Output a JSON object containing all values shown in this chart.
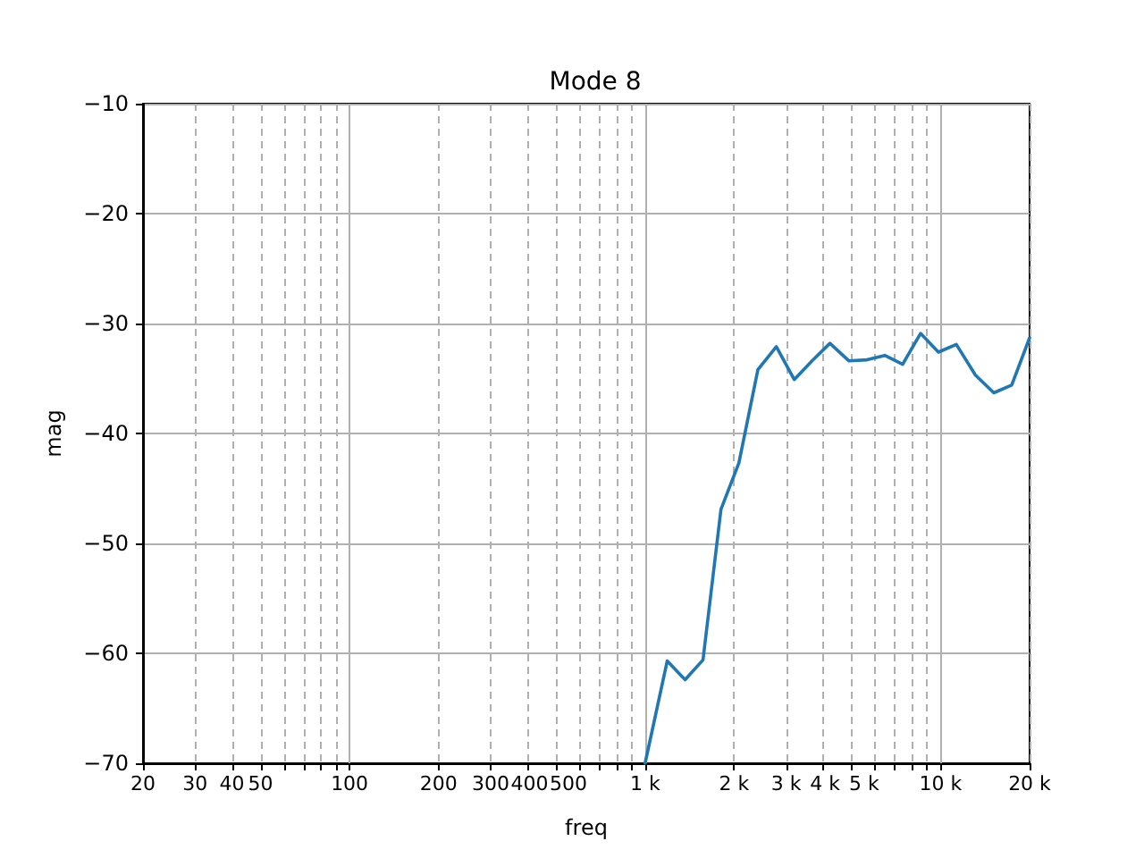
{
  "chart_data": {
    "type": "line",
    "title": "Mode 8",
    "xlabel": "freq",
    "ylabel": "mag",
    "log": "x",
    "grid": true,
    "x": [
      1000,
      1188,
      1366,
      1570,
      1806,
      2076,
      2408,
      2780,
      3196,
      3672,
      4220,
      4898,
      5632,
      6472,
      7441,
      8553,
      9830,
      11300,
      13118,
      15136,
      17398,
      20000
    ],
    "series": [
      {
        "color": "#1f77b4",
        "values": [
          -70,
          -60.7,
          -62.4,
          -60.6,
          -46.9,
          -42.7,
          -34.2,
          -32.1,
          -35.1,
          -33.4,
          -31.8,
          -33.4,
          -33.3,
          -32.9,
          -33.7,
          -30.9,
          -32.6,
          -31.9,
          -34.7,
          -36.3,
          -35.6,
          -31.3
        ]
      }
    ],
    "xlim": [
      20,
      20000
    ],
    "xticks": [
      {
        "value": 20,
        "label": "20"
      },
      {
        "value": 30,
        "label": "30"
      },
      {
        "value": 40,
        "label": "40"
      },
      {
        "value": 50,
        "label": "50"
      },
      {
        "value": 60,
        "label": null
      },
      {
        "value": 70,
        "label": null
      },
      {
        "value": 80,
        "label": null
      },
      {
        "value": 90,
        "label": null
      },
      {
        "value": 100,
        "label": "100"
      },
      {
        "value": 200,
        "label": "200"
      },
      {
        "value": 300,
        "label": "300"
      },
      {
        "value": 400,
        "label": "400"
      },
      {
        "value": 500,
        "label": "500"
      },
      {
        "value": 600,
        "label": null
      },
      {
        "value": 700,
        "label": null
      },
      {
        "value": 800,
        "label": null
      },
      {
        "value": 900,
        "label": null
      },
      {
        "value": 1000,
        "label": "1 k"
      },
      {
        "value": 2000,
        "label": "2 k"
      },
      {
        "value": 3000,
        "label": "3 k"
      },
      {
        "value": 4000,
        "label": "4 k"
      },
      {
        "value": 5000,
        "label": "5 k"
      },
      {
        "value": 6000,
        "label": null
      },
      {
        "value": 7000,
        "label": null
      },
      {
        "value": 8000,
        "label": null
      },
      {
        "value": 9000,
        "label": null
      },
      {
        "value": 10000,
        "label": "10 k"
      },
      {
        "value": 20000,
        "label": "20 k"
      }
    ],
    "ylim": [
      -70,
      -10
    ],
    "yticks": [
      -70,
      -60,
      -50,
      -40,
      -30,
      -20,
      -10
    ]
  }
}
